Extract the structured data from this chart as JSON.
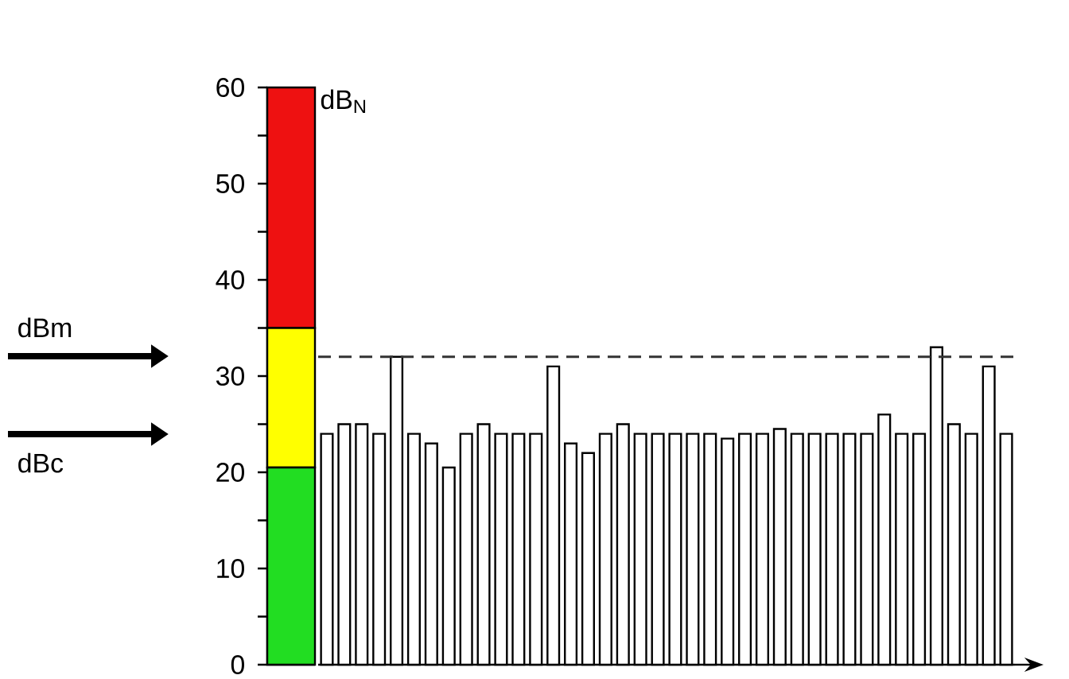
{
  "chart_data": [
    {
      "type": "bar",
      "stacked": true,
      "ylim": [
        0,
        60
      ],
      "yticks": [
        0,
        {
          "value": 5,
          "label": null
        },
        10,
        {
          "value": 15,
          "label": null
        },
        20,
        {
          "value": 25,
          "label": null
        },
        30,
        {
          "value": 35,
          "label": null
        },
        40,
        {
          "value": 45,
          "label": null
        },
        50,
        {
          "value": 55,
          "label": null
        },
        60
      ],
      "categories": [
        null
      ],
      "series": [
        {
          "color": "#22dd22",
          "values": [
            20.5
          ]
        },
        {
          "color": "#ffff00",
          "values": [
            14.5
          ]
        },
        {
          "color": "#ee1111",
          "values": [
            25
          ]
        }
      ],
      "annotations": [
        "dB$_{N}$"
      ]
    },
    {
      "type": "bar",
      "ylim": [
        0,
        60
      ],
      "tick_labels": false,
      "categories": [
        null,
        null,
        null,
        null,
        null,
        null,
        null,
        null,
        null,
        null,
        null,
        null,
        null,
        null,
        null,
        null,
        null,
        null,
        null,
        null,
        null,
        null,
        null,
        null,
        null,
        null,
        null,
        null,
        null,
        null,
        null,
        null,
        null,
        null,
        null,
        null,
        null,
        null,
        null,
        null
      ],
      "color": "#ffffff",
      "values": [
        24,
        25,
        25,
        24,
        32,
        24,
        23,
        20.5,
        24,
        25,
        24,
        24,
        24,
        31,
        23,
        22,
        24,
        25,
        24,
        24,
        24,
        24,
        24,
        23.5,
        24,
        24,
        24.5,
        24,
        24,
        24,
        24,
        24,
        26,
        24,
        24,
        33,
        25,
        24,
        31,
        24
      ],
      "ref_lines": [
        {
          "axis": "y",
          "value": 32,
          "line_style": "dashed",
          "color": "#333333"
        }
      ],
      "annotations": [
        "dBm",
        "dBc"
      ]
    }
  ]
}
